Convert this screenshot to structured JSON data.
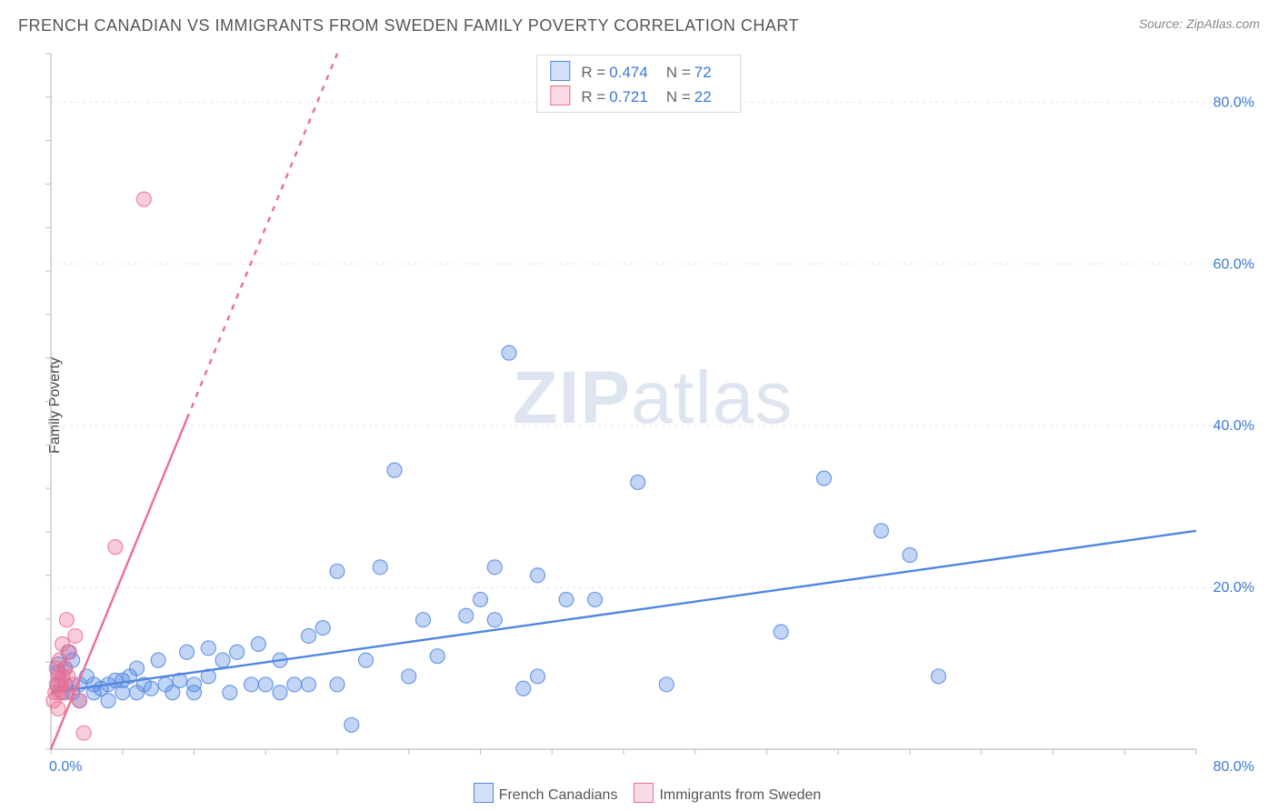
{
  "title": "FRENCH CANADIAN VS IMMIGRANTS FROM SWEDEN FAMILY POVERTY CORRELATION CHART",
  "source_label": "Source:",
  "source_value": "ZipAtlas.com",
  "y_axis_label": "Family Poverty",
  "watermark_a": "ZIP",
  "watermark_b": "atlas",
  "chart": {
    "type": "scatter",
    "background_color": "#ffffff",
    "grid_color": "#e3e3e3",
    "axis_color": "#bfbfbf",
    "tick_label_color": "#3a78d8",
    "tick_fontsize": 16,
    "xlim": [
      0,
      80
    ],
    "ylim": [
      0,
      86
    ],
    "x_ticks": [
      0,
      80
    ],
    "x_tick_labels": [
      "0.0%",
      "80.0%"
    ],
    "y_ticks": [
      20,
      40,
      60,
      80
    ],
    "y_tick_labels": [
      "20.0%",
      "40.0%",
      "60.0%",
      "80.0%"
    ],
    "marker_radius": 8,
    "marker_fill_opacity": 0.35,
    "marker_stroke_opacity": 0.8,
    "marker_stroke_width": 1.2,
    "series": [
      {
        "key": "french_canadians",
        "label": "French Canadians",
        "color": "#4f86e3",
        "r_label": "R =",
        "r_value": "0.474",
        "n_label": "N =",
        "n_value": "72",
        "trend": {
          "x1": 0,
          "y1": 7,
          "x2": 80,
          "y2": 27,
          "dash_from_x": 80,
          "stroke_width": 2.4
        },
        "points": [
          [
            0.5,
            8
          ],
          [
            0.5,
            9.5
          ],
          [
            0.5,
            10.5
          ],
          [
            0.8,
            7
          ],
          [
            1,
            8
          ],
          [
            1,
            10
          ],
          [
            1.2,
            12
          ],
          [
            1.5,
            7
          ],
          [
            1.5,
            11
          ],
          [
            2,
            8
          ],
          [
            2,
            6
          ],
          [
            2.5,
            9
          ],
          [
            3,
            7
          ],
          [
            3,
            8
          ],
          [
            3.5,
            7.5
          ],
          [
            4,
            8
          ],
          [
            4,
            6
          ],
          [
            4.5,
            8.5
          ],
          [
            5,
            7
          ],
          [
            5,
            8.5
          ],
          [
            5.5,
            9
          ],
          [
            6,
            7
          ],
          [
            6,
            10
          ],
          [
            6.5,
            8
          ],
          [
            7,
            7.5
          ],
          [
            7.5,
            11
          ],
          [
            8,
            8
          ],
          [
            8.5,
            7
          ],
          [
            9,
            8.5
          ],
          [
            9.5,
            12
          ],
          [
            10,
            8
          ],
          [
            10,
            7
          ],
          [
            11,
            12.5
          ],
          [
            11,
            9
          ],
          [
            12,
            11
          ],
          [
            12.5,
            7
          ],
          [
            13,
            12
          ],
          [
            14,
            8
          ],
          [
            14.5,
            13
          ],
          [
            15,
            8
          ],
          [
            16,
            11
          ],
          [
            16,
            7
          ],
          [
            17,
            8
          ],
          [
            18,
            14
          ],
          [
            18,
            8
          ],
          [
            19,
            15
          ],
          [
            20,
            8
          ],
          [
            20,
            22
          ],
          [
            21,
            3
          ],
          [
            22,
            11
          ],
          [
            23,
            22.5
          ],
          [
            24,
            34.5
          ],
          [
            25,
            9
          ],
          [
            26,
            16
          ],
          [
            27,
            11.5
          ],
          [
            29,
            16.5
          ],
          [
            30,
            18.5
          ],
          [
            31,
            22.5
          ],
          [
            31,
            16
          ],
          [
            32,
            49
          ],
          [
            33,
            7.5
          ],
          [
            34,
            21.5
          ],
          [
            34,
            9
          ],
          [
            36,
            18.5
          ],
          [
            38,
            18.5
          ],
          [
            41,
            33
          ],
          [
            43,
            8
          ],
          [
            51,
            14.5
          ],
          [
            54,
            33.5
          ],
          [
            58,
            27
          ],
          [
            60,
            24
          ],
          [
            62,
            9
          ]
        ]
      },
      {
        "key": "immigrants_sweden",
        "label": "Immigrants from Sweden",
        "color": "#ed6e91",
        "r_label": "R =",
        "r_value": "0.721",
        "n_label": "N =",
        "n_value": "22",
        "trend": {
          "x1": 0,
          "y1": 0,
          "x2": 20,
          "y2": 86,
          "dash_from_x": 9.5,
          "stroke_width": 2.4
        },
        "points": [
          [
            0.2,
            6
          ],
          [
            0.3,
            7
          ],
          [
            0.4,
            8
          ],
          [
            0.4,
            10
          ],
          [
            0.5,
            5
          ],
          [
            0.5,
            9
          ],
          [
            0.6,
            7
          ],
          [
            0.6,
            11
          ],
          [
            0.7,
            8
          ],
          [
            0.8,
            9
          ],
          [
            0.8,
            13
          ],
          [
            1.0,
            7
          ],
          [
            1.0,
            10
          ],
          [
            1.1,
            16
          ],
          [
            1.2,
            9
          ],
          [
            1.3,
            12
          ],
          [
            1.5,
            8
          ],
          [
            1.7,
            14
          ],
          [
            2.0,
            6
          ],
          [
            2.3,
            2
          ],
          [
            4.5,
            25
          ],
          [
            6.5,
            68
          ]
        ]
      }
    ]
  }
}
